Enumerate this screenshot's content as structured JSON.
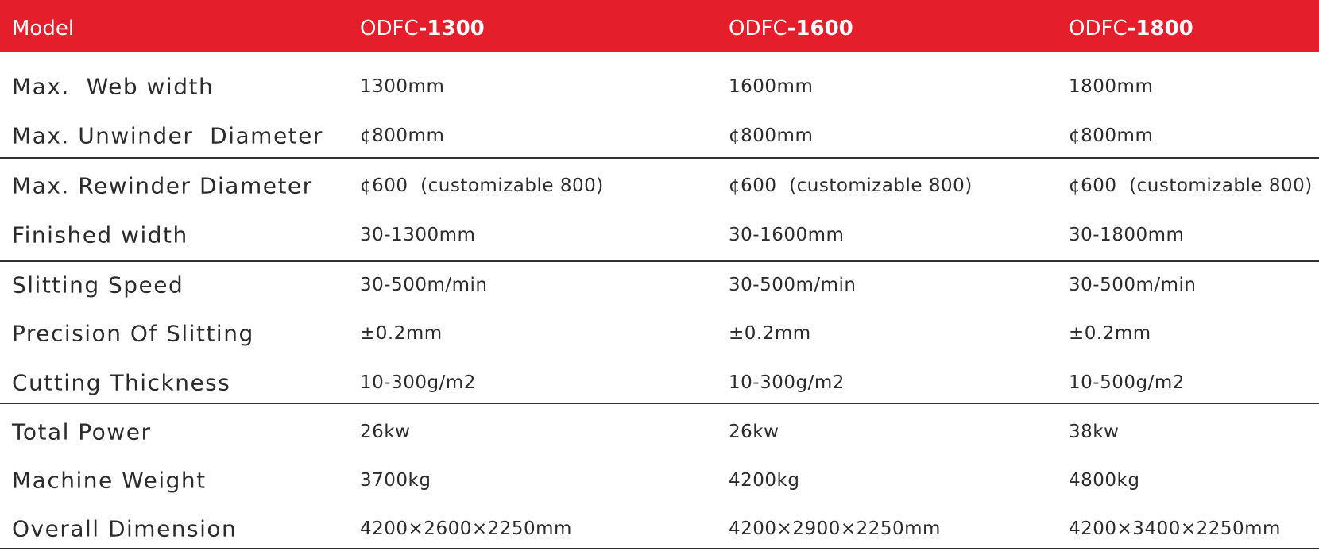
{
  "header": {
    "label": "Model",
    "models": [
      {
        "prefix": "ODFC",
        "suffix": "-1300"
      },
      {
        "prefix": "ODFC",
        "suffix": "-1600"
      },
      {
        "prefix": "ODFC",
        "suffix": "-1800"
      }
    ]
  },
  "rows": [
    [
      "Max.  Web width",
      "1300mm",
      "1600mm",
      "1800mm"
    ],
    [
      "Max. Unwinder  Diameter",
      "¢800mm",
      "¢800mm",
      "¢800mm"
    ],
    [
      "Max. Rewinder Diameter",
      "¢600  (customizable 800)",
      "¢600  (customizable 800)",
      "¢600  (customizable 800)"
    ],
    [
      "Finished width",
      "30-1300mm",
      "30-1600mm",
      "30-1800mm"
    ],
    [
      "Slitting Speed",
      "30-500m/min",
      "30-500m/min",
      "30-500m/min"
    ],
    [
      "Precision Of Slitting",
      "±0.2mm",
      "±0.2mm",
      "±0.2mm"
    ],
    [
      "Cutting Thickness",
      "10-300g/m2",
      "10-300g/m2",
      "10-500g/m2"
    ],
    [
      "Total Power",
      "26kw",
      "26kw",
      "38kw"
    ],
    [
      "Machine Weight",
      "3700kg",
      "4200kg",
      "4800kg"
    ],
    [
      "Overall Dimension",
      "4200×2600×2250mm",
      "4200×2900×2250mm",
      "4200×3400×2250mm"
    ]
  ]
}
